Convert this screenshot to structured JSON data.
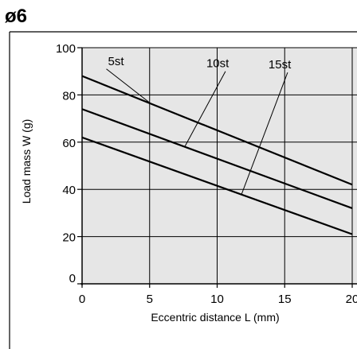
{
  "chart_data": {
    "type": "line",
    "title": "ø6",
    "xlabel": "Eccentric distance L (mm)",
    "ylabel": "Load mass W (g)",
    "xlim": [
      0,
      20
    ],
    "ylim": [
      0,
      100
    ],
    "x_ticks": [
      "0",
      "5",
      "10",
      "15",
      "20"
    ],
    "y_ticks": [
      "0",
      "20",
      "40",
      "60",
      "80",
      "100"
    ],
    "x_tick_values": [
      0,
      5,
      10,
      15,
      20
    ],
    "y_tick_values": [
      0,
      20,
      40,
      60,
      80,
      100
    ],
    "grid": true,
    "plot_background": "#e6e6e6",
    "line_color": "#000000",
    "series": [
      {
        "name": "5st",
        "x": [
          0,
          20
        ],
        "y": [
          88,
          42
        ]
      },
      {
        "name": "10st",
        "x": [
          0,
          20
        ],
        "y": [
          74,
          32
        ]
      },
      {
        "name": "15st",
        "x": [
          0,
          20
        ],
        "y": [
          62,
          21
        ]
      }
    ]
  }
}
